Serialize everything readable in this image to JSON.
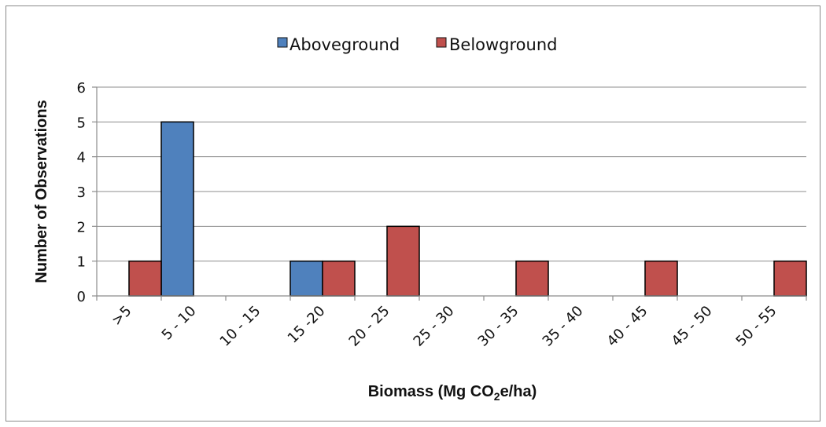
{
  "chart_data": {
    "type": "bar",
    "xlabel_prefix": "Biomass (Mg CO",
    "xlabel_sub": "2",
    "xlabel_suffix": "e/ha)",
    "ylabel": "Number of Observations",
    "categories": [
      ">5",
      "5 - 10",
      "10 - 15",
      "15 -20",
      "20 - 25",
      "25 - 30",
      "30 - 35",
      "35 - 40",
      "40 - 45",
      "45 - 50",
      "50 - 55"
    ],
    "series": [
      {
        "name": "Aboveground",
        "color": "#4f81bd",
        "values": [
          0,
          5,
          0,
          1,
          0,
          0,
          0,
          0,
          0,
          0,
          0
        ]
      },
      {
        "name": "Belowground",
        "color": "#c0504d",
        "values": [
          1,
          0,
          0,
          1,
          2,
          0,
          1,
          0,
          1,
          0,
          1
        ]
      }
    ],
    "ylim": [
      0,
      6
    ],
    "yticks": [
      0,
      1,
      2,
      3,
      4,
      5,
      6
    ],
    "grid": true,
    "legend_position": "top-center"
  }
}
